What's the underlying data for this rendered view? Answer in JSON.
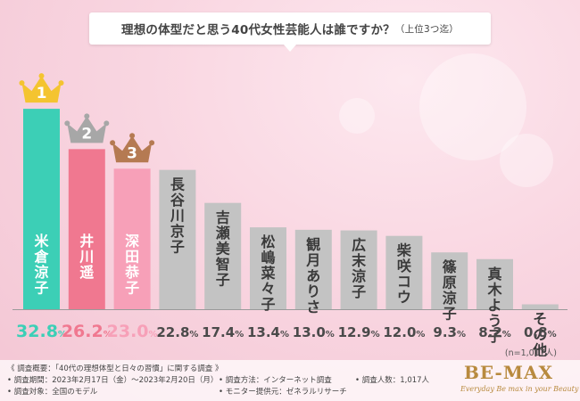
{
  "title": {
    "main": "理想の体型だと思う40代女性芸能人は誰ですか？",
    "sub": "（上位3つ迄）"
  },
  "colors": {
    "rank1": "#3ccfb6",
    "rank2": "#f07890",
    "rank3": "#f7a0b8",
    "other": "#c3c3c3",
    "gold": "#f4c430",
    "silver": "#a7a7a7",
    "bronze": "#b57a52"
  },
  "chart_data": {
    "type": "bar",
    "categories": [
      "米倉涼子",
      "井川遥",
      "深田恭子",
      "長谷川京子",
      "吉瀬美智子",
      "松嶋菜々子",
      "観月ありさ",
      "広末涼子",
      "柴咲コウ",
      "篠原涼子",
      "真木よう子",
      "その他"
    ],
    "values": [
      32.8,
      26.2,
      23.0,
      22.8,
      17.4,
      13.4,
      13.0,
      12.9,
      12.0,
      9.3,
      8.2,
      0.8
    ],
    "value_labels": [
      "32.8",
      "26.2",
      "23.0",
      "22.8",
      "17.4",
      "13.4",
      "13.0",
      "12.9",
      "12.0",
      "9.3",
      "8.2",
      "0.8"
    ],
    "unit": "%",
    "ranks": [
      "1",
      "2",
      "3"
    ],
    "ylim": [
      0,
      35
    ],
    "note": "(n=1,017人)"
  },
  "footer": {
    "line1": "《 調査概要：「40代の理想体型と日々の習慣」に関する調査 》",
    "period": "• 調査期間：2023年2月17日（金）〜2023年2月20日（月）",
    "target": "• 調査対象：全国のモデル",
    "method": "• 調査方法：インターネット調査",
    "provider": "• モニター提供元：ゼネラルリサーチ",
    "count": "• 調査人数：1,017人",
    "logo": "BE-MAX",
    "tagline": "Everyday Be max in your Beauty"
  }
}
